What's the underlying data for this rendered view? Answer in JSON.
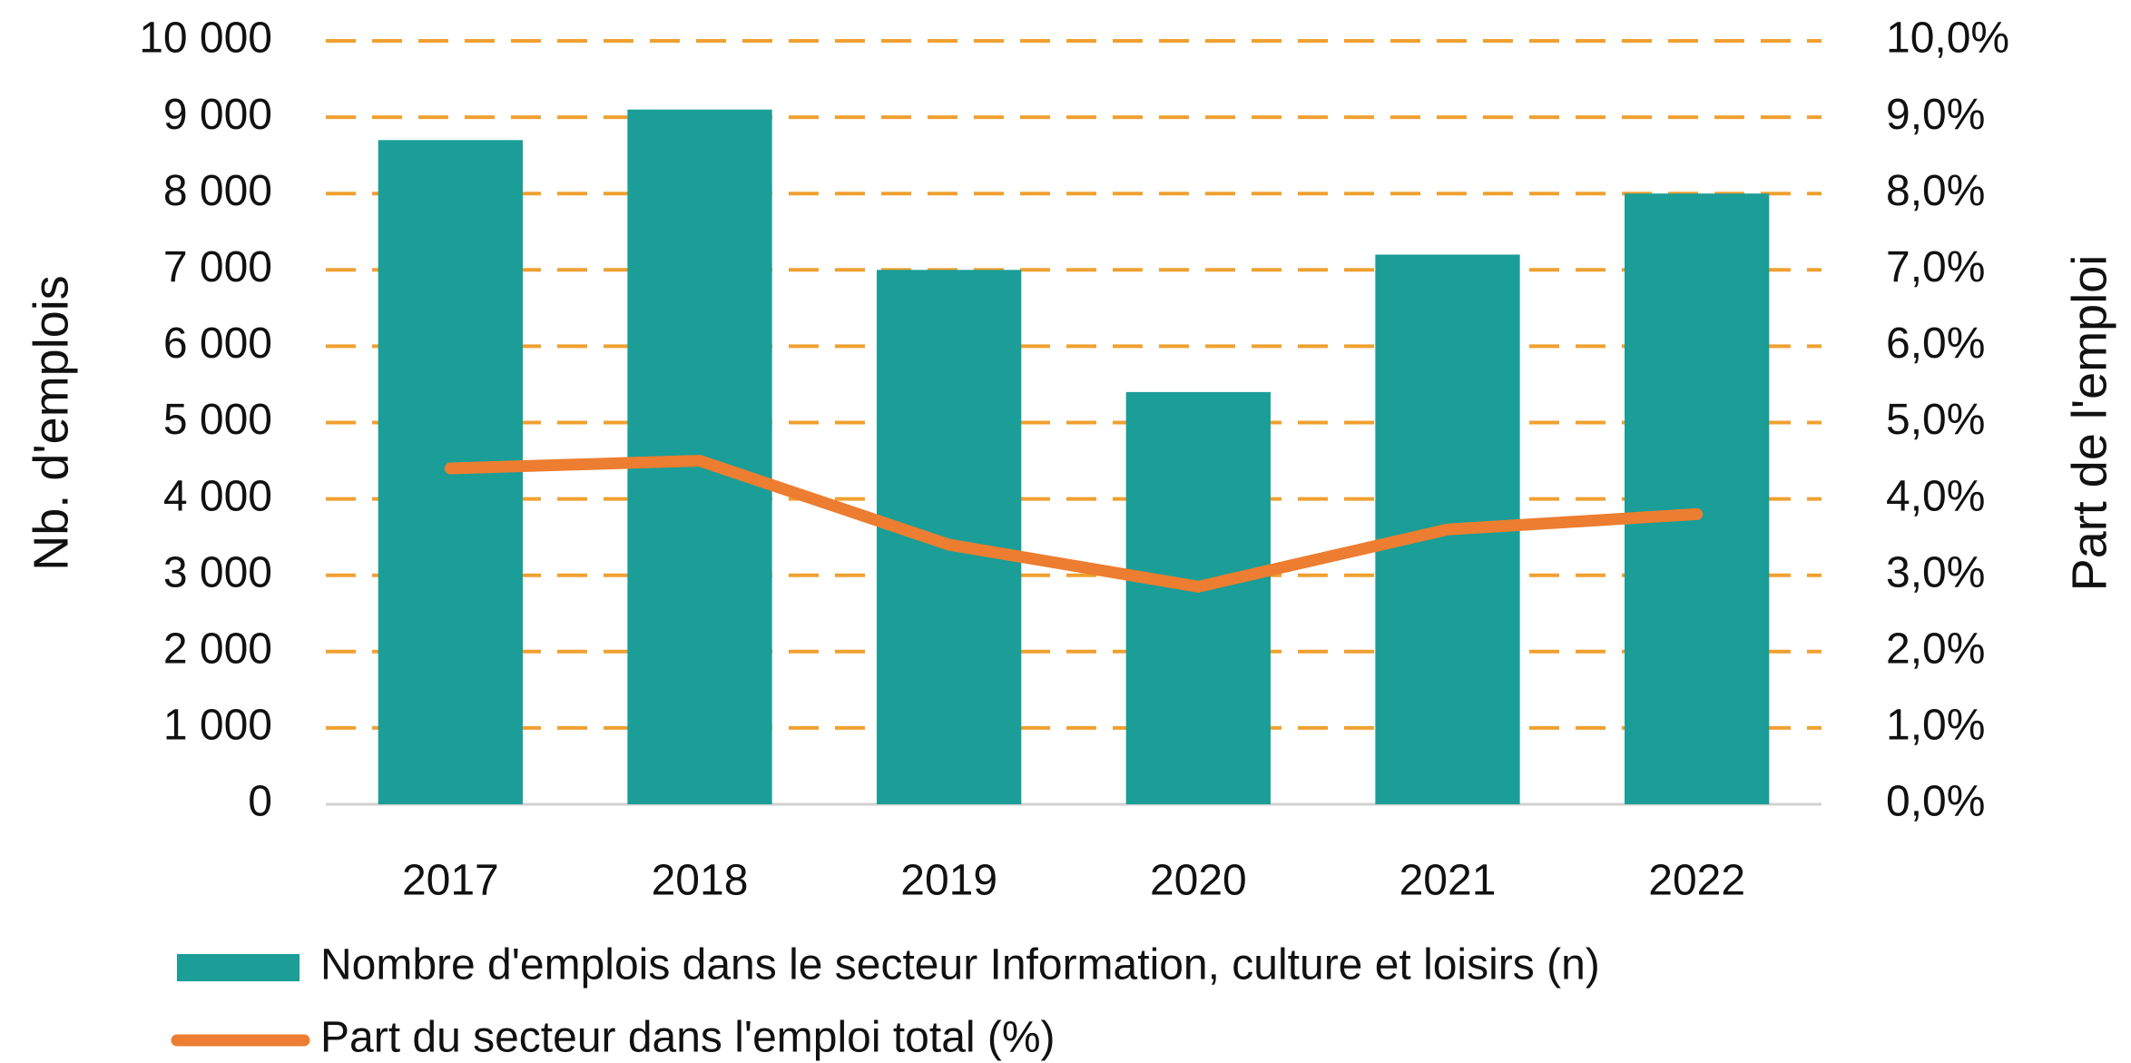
{
  "chart_data": {
    "type": "bar",
    "categories": [
      "2017",
      "2018",
      "2019",
      "2020",
      "2021",
      "2022"
    ],
    "series": [
      {
        "name": "Nombre d'emplois dans le secteur Information, culture et loisirs (n)",
        "color": "#1a9e97",
        "type": "bar",
        "values": [
          8700,
          9100,
          7000,
          5400,
          7200,
          8000
        ]
      },
      {
        "name": "Part du secteur dans l'emploi total (%)",
        "color": "#ed7d31",
        "type": "line",
        "axis": "y2",
        "values": [
          4.4,
          4.5,
          3.4,
          2.85,
          3.6,
          3.8
        ]
      }
    ],
    "ylabel": "Nb. d'emplois",
    "y2label": "Part de l'emploi",
    "ylim": [
      0,
      10000
    ],
    "yticks": [
      0,
      {
        "value": 1000,
        "label": "1 000"
      },
      {
        "value": 2000,
        "label": "2 000"
      },
      {
        "value": 3000,
        "label": "3 000"
      },
      {
        "value": 4000,
        "label": "4 000"
      },
      {
        "value": 5000,
        "label": "5 000"
      },
      {
        "value": 6000,
        "label": "6 000"
      },
      {
        "value": 7000,
        "label": "7 000"
      },
      {
        "value": 8000,
        "label": "8 000"
      },
      {
        "value": 9000,
        "label": "9 000"
      },
      {
        "value": 10000,
        "label": "10 000"
      }
    ],
    "y2lim": [
      0,
      10
    ],
    "y2ticks": [
      {
        "value": 0,
        "label": "0,0%"
      },
      {
        "value": 1,
        "label": "1,0%"
      },
      {
        "value": 2,
        "label": "2,0%"
      },
      {
        "value": 3,
        "label": "3,0%"
      },
      {
        "value": 4,
        "label": "4,0%"
      },
      {
        "value": 5,
        "label": "5,0%"
      },
      {
        "value": 6,
        "label": "6,0%"
      },
      {
        "value": 7,
        "label": "7,0%"
      },
      {
        "value": 8,
        "label": "8,0%"
      },
      {
        "value": 9,
        "label": "9,0%"
      },
      {
        "value": 10,
        "label": "10,0%"
      }
    ],
    "grid": true,
    "grid_color": "#f0a030",
    "legend": "bottom"
  }
}
